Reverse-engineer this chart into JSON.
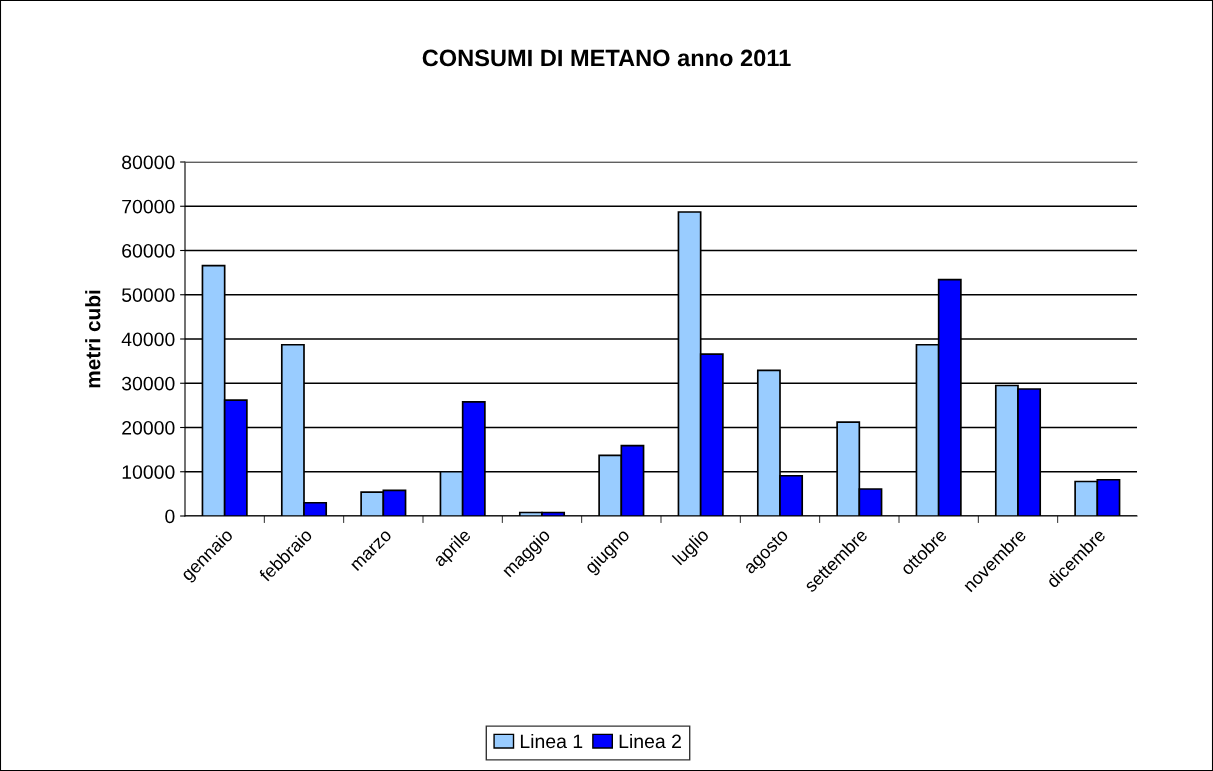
{
  "chart_data": {
    "type": "bar",
    "title": "CONSUMI DI METANO anno 2011",
    "ylabel": "metri cubi",
    "categories": [
      "gennaio",
      "febbraio",
      "marzo",
      "aprile",
      "maggio",
      "giugno",
      "luglio",
      "agosto",
      "settembre",
      "ottobre",
      "novembre",
      "dicembre"
    ],
    "series": [
      {
        "name": "Linea 1",
        "color": "#99ccff",
        "values": [
          56600,
          38700,
          5400,
          10000,
          800,
          13700,
          68700,
          32900,
          21200,
          38700,
          29500,
          7800
        ]
      },
      {
        "name": "Linea 2",
        "color": "#0000ff",
        "values": [
          26200,
          3000,
          5800,
          25800,
          800,
          15900,
          36600,
          9100,
          6100,
          53400,
          28700,
          8200
        ]
      }
    ],
    "ylim": [
      0,
      80000
    ],
    "yticks": [
      0,
      10000,
      20000,
      30000,
      40000,
      50000,
      60000,
      70000,
      80000
    ],
    "grid": "y",
    "legend": "bottom"
  }
}
